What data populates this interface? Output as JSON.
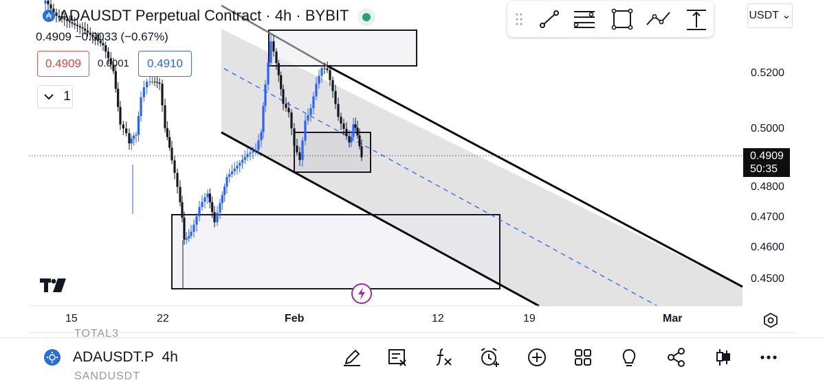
{
  "header": {
    "title": "ADAUSDT Perpetual Contract · 4h · BYBIT",
    "price_line": "0.4909 −0.0033 (−0.67%)"
  },
  "order_panel": {
    "sell_price": "0.4909",
    "spread": "0.0001",
    "buy_price": "0.4910",
    "collapse_count": "1"
  },
  "currency_button": "USDT ⌄",
  "price_axis": {
    "labels": [
      "0.5200",
      "0.5000",
      "0.4800",
      "0.4700",
      "0.4600",
      "0.4500"
    ],
    "current_price": "0.4909",
    "countdown": "50:35"
  },
  "time_axis": {
    "labels": [
      {
        "text": "15",
        "bold": false
      },
      {
        "text": "22",
        "bold": false
      },
      {
        "text": "Feb",
        "bold": true
      },
      {
        "text": "12",
        "bold": false
      },
      {
        "text": "19",
        "bold": false
      },
      {
        "text": "Mar",
        "bold": true
      }
    ]
  },
  "drawing_toolbar": {
    "icons": [
      "drag-handle-icon",
      "trend-line-icon",
      "fib-retracement-icon",
      "rectangle-icon",
      "path-icon",
      "long-position-icon"
    ]
  },
  "bottom_bar": {
    "symbol": "ADAUSDT.P",
    "interval": "4h",
    "peek_above": "TOTAL3",
    "peek_below": "SANDUSDT",
    "icons": [
      "pencil-icon",
      "object-tree-icon",
      "indicators-icon",
      "alert-icon",
      "add-icon",
      "layout-icon",
      "ideas-icon",
      "share-icon",
      "chart-type-icon",
      "more-icon"
    ]
  },
  "colors": {
    "up_candle": "#2962ff",
    "down_candle": "#131722",
    "channel_fill": "#d9d9d9",
    "dashed_line": "#2962ff",
    "bolt_accent": "#9c27b0",
    "sell": "#e03e3e",
    "buy": "#2962ff"
  }
}
